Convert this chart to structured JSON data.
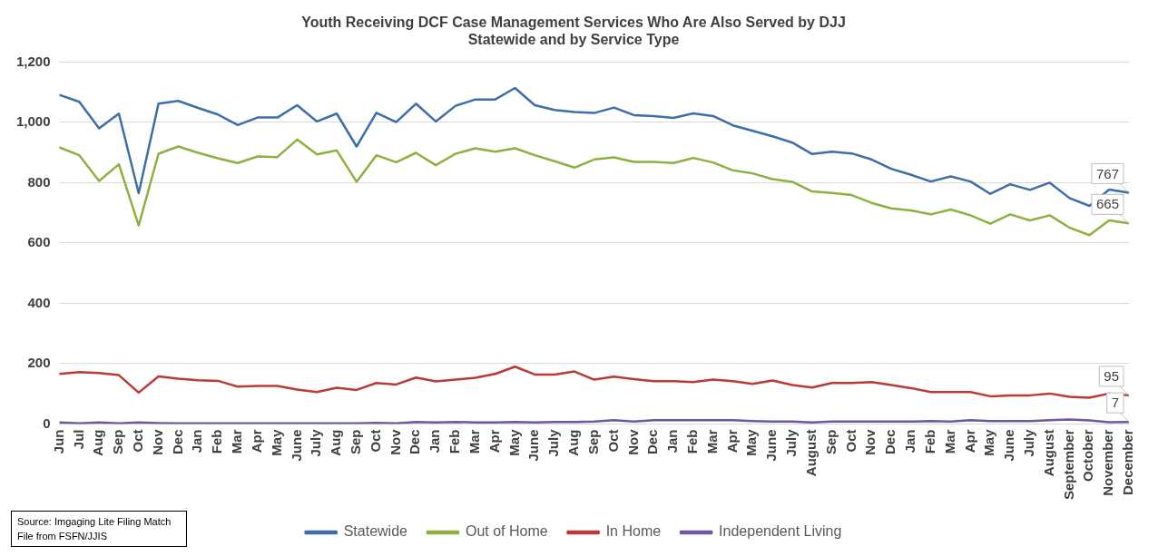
{
  "chart_data": {
    "type": "line",
    "title": "Youth Receiving DCF Case Management Services Who Are Also Served by DJJ",
    "subtitle": "Statewide and by Service Type",
    "categories": [
      "Jun",
      "Jul",
      "Aug",
      "Sep",
      "Oct",
      "Nov",
      "Dec",
      "Jan",
      "Feb",
      "Mar",
      "Apr",
      "May",
      "June",
      "July",
      "Aug",
      "Sep",
      "Oct",
      "Nov",
      "Dec",
      "Jan",
      "Feb",
      "Mar",
      "Apr",
      "May",
      "June",
      "July",
      "Aug",
      "Sep",
      "Oct",
      "Nov",
      "Dec",
      "Jan",
      "Feb",
      "Mar",
      "Apr",
      "May",
      "June",
      "July",
      "August",
      "Sep",
      "Oct",
      "Nov",
      "Dec",
      "Jan",
      "Feb",
      "Mar",
      "Apr",
      "May",
      "June",
      "July",
      "August",
      "September",
      "October",
      "November",
      "December"
    ],
    "series": [
      {
        "name": "Statewide",
        "color": "#3b6eab",
        "values": [
          1091,
          1068,
          980,
          1029,
          765,
          1062,
          1071,
          1048,
          1026,
          991,
          1016,
          1016,
          1057,
          1003,
          1029,
          920,
          1032,
          1001,
          1062,
          1003,
          1055,
          1076,
          1076,
          1114,
          1057,
          1041,
          1034,
          1031,
          1049,
          1024,
          1021,
          1015,
          1030,
          1021,
          990,
          972,
          954,
          933,
          895,
          903,
          897,
          877,
          846,
          826,
          804,
          821,
          804,
          763,
          795,
          776,
          800,
          749,
          723,
          777,
          767
        ],
        "value_labels": [
          null,
          null,
          null,
          null,
          null,
          null,
          null,
          null,
          null,
          null,
          null,
          null,
          null,
          null,
          null,
          null,
          null,
          null,
          null,
          null,
          null,
          null,
          null,
          null,
          null,
          null,
          null,
          null,
          null,
          null,
          null,
          null,
          null,
          null,
          null,
          null,
          null,
          null,
          null,
          null,
          null,
          null,
          null,
          null,
          null,
          null,
          null,
          null,
          null,
          null,
          null,
          null,
          null,
          null,
          "767"
        ]
      },
      {
        "name": "Out of Home",
        "color": "#8db03f",
        "values": [
          917,
          891,
          806,
          861,
          658,
          896,
          920,
          899,
          881,
          865,
          887,
          885,
          943,
          894,
          907,
          803,
          891,
          868,
          899,
          858,
          896,
          914,
          903,
          914,
          891,
          871,
          850,
          877,
          884,
          869,
          869,
          865,
          882,
          867,
          841,
          831,
          812,
          803,
          771,
          766,
          759,
          733,
          715,
          708,
          695,
          711,
          692,
          664,
          695,
          675,
          692,
          651,
          626,
          675,
          665
        ],
        "value_labels": [
          null,
          null,
          null,
          null,
          null,
          null,
          null,
          null,
          null,
          null,
          null,
          null,
          null,
          null,
          null,
          null,
          null,
          null,
          null,
          null,
          null,
          null,
          null,
          null,
          null,
          null,
          null,
          null,
          null,
          null,
          null,
          null,
          null,
          null,
          null,
          null,
          null,
          null,
          null,
          null,
          null,
          null,
          null,
          null,
          null,
          null,
          null,
          null,
          null,
          null,
          null,
          null,
          null,
          null,
          "665"
        ]
      },
      {
        "name": "In Home",
        "color": "#bb3a36",
        "values": [
          166,
          172,
          169,
          162,
          104,
          158,
          150,
          145,
          143,
          124,
          126,
          126,
          114,
          106,
          120,
          113,
          136,
          131,
          154,
          141,
          147,
          153,
          166,
          190,
          164,
          164,
          174,
          147,
          157,
          149,
          142,
          142,
          139,
          147,
          142,
          133,
          144,
          129,
          121,
          136,
          136,
          139,
          129,
          119,
          106,
          106,
          106,
          92,
          95,
          95,
          101,
          90,
          87,
          101,
          95
        ],
        "value_labels": [
          null,
          null,
          null,
          null,
          null,
          null,
          null,
          null,
          null,
          null,
          null,
          null,
          null,
          null,
          null,
          null,
          null,
          null,
          null,
          null,
          null,
          null,
          null,
          null,
          null,
          null,
          null,
          null,
          null,
          null,
          null,
          null,
          null,
          null,
          null,
          null,
          null,
          null,
          null,
          null,
          null,
          null,
          null,
          null,
          null,
          null,
          null,
          null,
          null,
          null,
          null,
          null,
          null,
          null,
          "95"
        ]
      },
      {
        "name": "Independent Living",
        "color": "#6f56a0",
        "values": [
          5,
          2,
          5,
          2,
          5,
          3,
          2,
          2,
          2,
          2,
          2,
          2,
          2,
          2,
          2,
          2,
          4,
          2,
          7,
          5,
          7,
          5,
          5,
          7,
          5,
          7,
          7,
          8,
          13,
          8,
          13,
          13,
          13,
          13,
          13,
          10,
          8,
          8,
          5,
          8,
          8,
          8,
          8,
          8,
          10,
          8,
          13,
          10,
          10,
          10,
          13,
          15,
          12,
          6,
          7
        ],
        "value_labels": [
          null,
          null,
          null,
          null,
          null,
          null,
          null,
          null,
          null,
          null,
          null,
          null,
          null,
          null,
          null,
          null,
          null,
          null,
          null,
          null,
          null,
          null,
          null,
          null,
          null,
          null,
          null,
          null,
          null,
          null,
          null,
          null,
          null,
          null,
          null,
          null,
          null,
          null,
          null,
          null,
          null,
          null,
          null,
          null,
          null,
          null,
          null,
          null,
          null,
          null,
          null,
          null,
          null,
          null,
          "7"
        ]
      }
    ],
    "ylim": [
      0,
      1200
    ],
    "yticks": [
      0,
      200,
      400,
      600,
      800,
      {
        "value": 1000,
        "label": "1,000"
      },
      {
        "value": 1200,
        "label": "1,200"
      }
    ],
    "grid": "y",
    "legend": "bottom",
    "marker": "none",
    "line_style": "solid",
    "annotations": [
      "Source: Imgaging Lite Filing Match File from FSFN/JJIS"
    ]
  }
}
